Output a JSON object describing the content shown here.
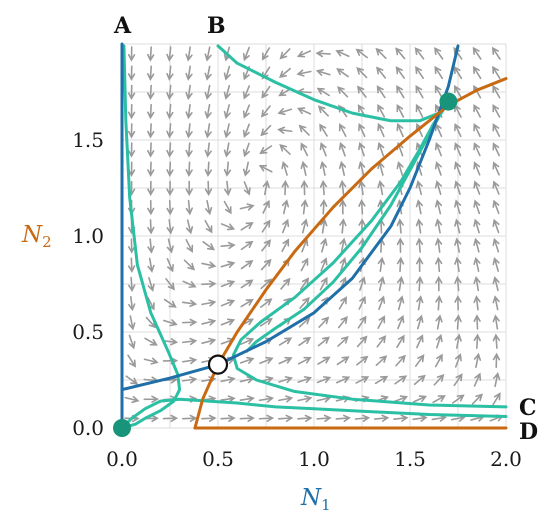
{
  "chart_data": {
    "type": "phase-portrait",
    "xlabel": "N",
    "xlabel_sub": "1",
    "ylabel": "N",
    "ylabel_sub": "2",
    "xlim": [
      0,
      2.0
    ],
    "ylim": [
      0,
      2.0
    ],
    "xticks": [
      0.0,
      0.5,
      1.0,
      1.5,
      2.0
    ],
    "xtick_labels": [
      "0.0",
      "0.5",
      "1.0",
      "1.5",
      "2.0"
    ],
    "yticks": [
      0.0,
      0.5,
      1.0,
      1.5
    ],
    "ytick_labels": [
      "0.0",
      "0.5",
      "1.0",
      "1.5"
    ],
    "grid": true,
    "corner_labels": {
      "A": "A",
      "B": "B",
      "C": "C",
      "D": "D"
    },
    "colors": {
      "n1_nullcline": "#1f6fa8",
      "n2_nullcline": "#c96a12",
      "trajectory": "#2bbfa4",
      "vector_field": "#9a9a9a",
      "stable_point": "#17947a",
      "grid": "#dddddd"
    },
    "n1_nullcline": {
      "name": "N1 nullcline",
      "x": [
        0.0,
        0.25,
        0.5,
        0.75,
        1.0,
        1.2,
        1.4,
        1.5,
        1.6,
        1.7,
        1.75
      ],
      "y": [
        0.2,
        0.26,
        0.33,
        0.45,
        0.6,
        0.78,
        1.05,
        1.25,
        1.5,
        1.78,
        1.99
      ]
    },
    "n1_axis_nullcline": {
      "x": [
        0.0,
        0.0
      ],
      "y": [
        0.0,
        2.0
      ]
    },
    "n2_nullcline": {
      "name": "N2 nullcline",
      "x": [
        0.38,
        0.42,
        0.5,
        0.6,
        0.75,
        0.9,
        1.1,
        1.3,
        1.5,
        1.7,
        1.85,
        2.0
      ],
      "y": [
        0.0,
        0.15,
        0.33,
        0.5,
        0.72,
        0.92,
        1.15,
        1.35,
        1.52,
        1.68,
        1.76,
        1.82
      ]
    },
    "n2_axis_nullcline": {
      "x": [
        0.38,
        2.0
      ],
      "y": [
        0.0,
        0.0
      ]
    },
    "trajectories": [
      {
        "x": [
          0.01,
          0.02,
          0.04,
          0.08,
          0.15,
          0.24,
          0.29,
          0.3,
          0.27,
          0.2,
          0.12,
          0.07,
          0.0
        ],
        "y": [
          1.99,
          1.6,
          1.2,
          0.85,
          0.6,
          0.4,
          0.28,
          0.2,
          0.14,
          0.09,
          0.05,
          0.02,
          0.0
        ]
      },
      {
        "x": [
          0.5,
          0.6,
          0.8,
          1.0,
          1.2,
          1.4,
          1.55,
          1.65,
          1.7
        ],
        "y": [
          1.99,
          1.9,
          1.8,
          1.71,
          1.64,
          1.6,
          1.6,
          1.64,
          1.7
        ]
      },
      {
        "x": [
          0.0,
          0.05,
          0.12,
          0.2,
          0.3,
          0.45,
          0.6,
          0.8,
          1.0,
          1.2,
          1.4,
          1.6,
          1.8,
          2.0
        ],
        "y": [
          0.0,
          0.05,
          0.1,
          0.14,
          0.15,
          0.14,
          0.13,
          0.11,
          0.1,
          0.09,
          0.08,
          0.07,
          0.065,
          0.06
        ]
      },
      {
        "x": [
          2.0,
          1.6,
          1.2,
          0.9,
          0.7,
          0.6,
          0.58,
          0.62,
          0.72,
          0.9,
          1.1,
          1.3,
          1.45,
          1.55,
          1.62,
          1.7
        ],
        "y": [
          0.11,
          0.12,
          0.15,
          0.19,
          0.25,
          0.31,
          0.38,
          0.46,
          0.55,
          0.68,
          0.86,
          1.08,
          1.28,
          1.45,
          1.58,
          1.7
        ]
      },
      {
        "x": [
          0.65,
          0.7,
          0.8,
          0.95,
          1.1,
          1.25,
          1.4,
          1.52,
          1.6,
          1.65,
          1.7
        ],
        "y": [
          0.4,
          0.45,
          0.52,
          0.62,
          0.76,
          0.94,
          1.16,
          1.38,
          1.53,
          1.62,
          1.7
        ]
      }
    ],
    "equilibria": [
      {
        "x": 0.0,
        "y": 0.0,
        "stable": true
      },
      {
        "x": 1.7,
        "y": 1.7,
        "stable": true
      },
      {
        "x": 0.5,
        "y": 0.33,
        "stable": false
      }
    ]
  }
}
